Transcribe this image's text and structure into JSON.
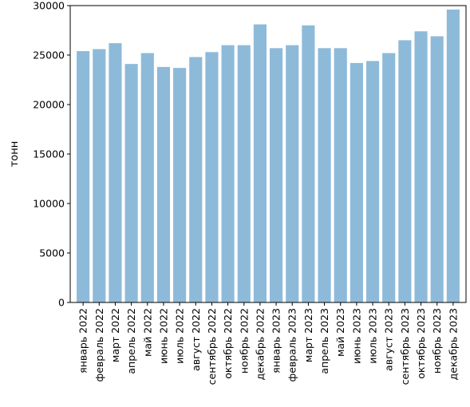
{
  "colors": {
    "bar": "#8ebad9",
    "axis": "#000000",
    "background": "#ffffff"
  },
  "chart_data": {
    "type": "bar",
    "title": "",
    "xlabel": "",
    "ylabel": "тонн",
    "ylim": [
      0,
      30000
    ],
    "yticks": [
      0,
      5000,
      10000,
      15000,
      20000,
      25000,
      30000
    ],
    "ytick_labels": [
      "0",
      "5000",
      "10000",
      "15000",
      "20000",
      "25000",
      "30000"
    ],
    "grid": false,
    "legend": "none",
    "categories": [
      "январь 2022",
      "февраль 2022",
      "март 2022",
      "апрель 2022",
      "май 2022",
      "июнь 2022",
      "июль 2022",
      "август 2022",
      "сентябрь 2022",
      "октябрь 2022",
      "ноябрь 2022",
      "декабрь 2022",
      "январь 2023",
      "февраль 2023",
      "март 2023",
      "апрель 2023",
      "май 2023",
      "июнь 2023",
      "июль 2023",
      "август 2023",
      "сентябрь 2023",
      "октябрь 2023",
      "ноябрь 2023",
      "декабрь 2023"
    ],
    "values": [
      25400,
      25600,
      26200,
      24100,
      25200,
      23800,
      23700,
      24800,
      25300,
      26000,
      26000,
      28100,
      25700,
      26000,
      28000,
      25700,
      25700,
      24200,
      24400,
      25200,
      26500,
      27400,
      26900,
      29600
    ]
  }
}
